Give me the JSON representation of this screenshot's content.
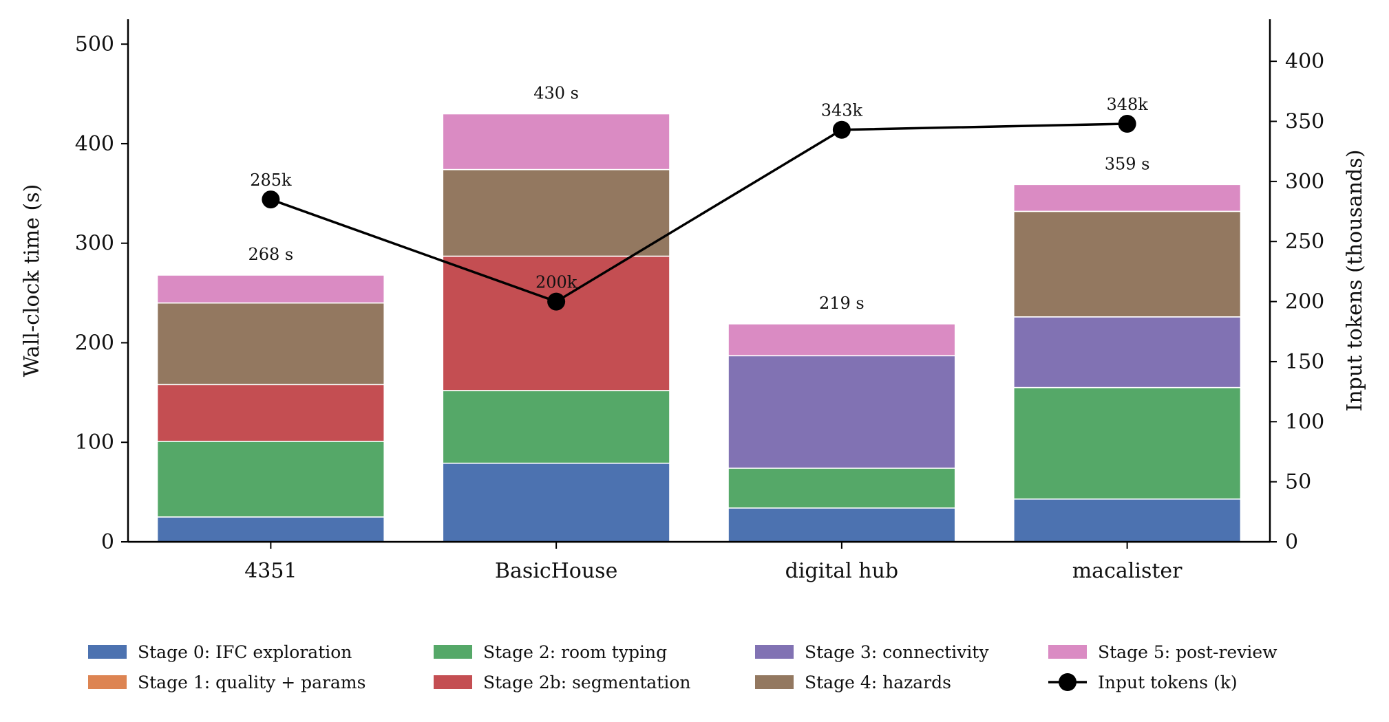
{
  "chart_data": {
    "type": "bar",
    "stacked": true,
    "categories": [
      "4351",
      "BasicHouse",
      "digital hub",
      "macalister"
    ],
    "ylabel": "Wall-clock time (s)",
    "y2label": "Input tokens (thousands)",
    "ylim": [
      0,
      525
    ],
    "y2lim": [
      0,
      435
    ],
    "yticks": [
      "0",
      "100",
      "200",
      "300",
      "400",
      "500"
    ],
    "y2ticks": [
      "0",
      "50",
      "100",
      "150",
      "200",
      "250",
      "300",
      "350",
      "400"
    ],
    "grid": false,
    "legend_position": "bottom",
    "series": [
      {
        "name": "Stage 0: IFC exploration",
        "color": "#4c72b0",
        "values": [
          25,
          79,
          34,
          43
        ]
      },
      {
        "name": "Stage 1: quality + params",
        "color": "#dd8452",
        "values": [
          0,
          0,
          0,
          0
        ]
      },
      {
        "name": "Stage 2: room typing",
        "color": "#55a868",
        "values": [
          76,
          73,
          40,
          112
        ]
      },
      {
        "name": "Stage 2b: segmentation",
        "color": "#c44e52",
        "values": [
          57,
          135,
          0,
          0
        ]
      },
      {
        "name": "Stage 3: connectivity",
        "color": "#8172b3",
        "values": [
          0,
          0,
          113,
          71
        ]
      },
      {
        "name": "Stage 4: hazards",
        "color": "#937860",
        "values": [
          82,
          87,
          0,
          106
        ]
      },
      {
        "name": "Stage 5: post-review",
        "color": "#da8bc3",
        "values": [
          28,
          56,
          32,
          27
        ]
      }
    ],
    "totals": [
      268,
      430,
      219,
      359
    ],
    "total_labels": [
      "268 s",
      "430 s",
      "219 s",
      "359 s"
    ],
    "line": {
      "name": "Input tokens (k)",
      "color": "#000000",
      "values": [
        285,
        200,
        343,
        348
      ],
      "labels": [
        "285k",
        "200k",
        "343k",
        "348k"
      ]
    }
  }
}
